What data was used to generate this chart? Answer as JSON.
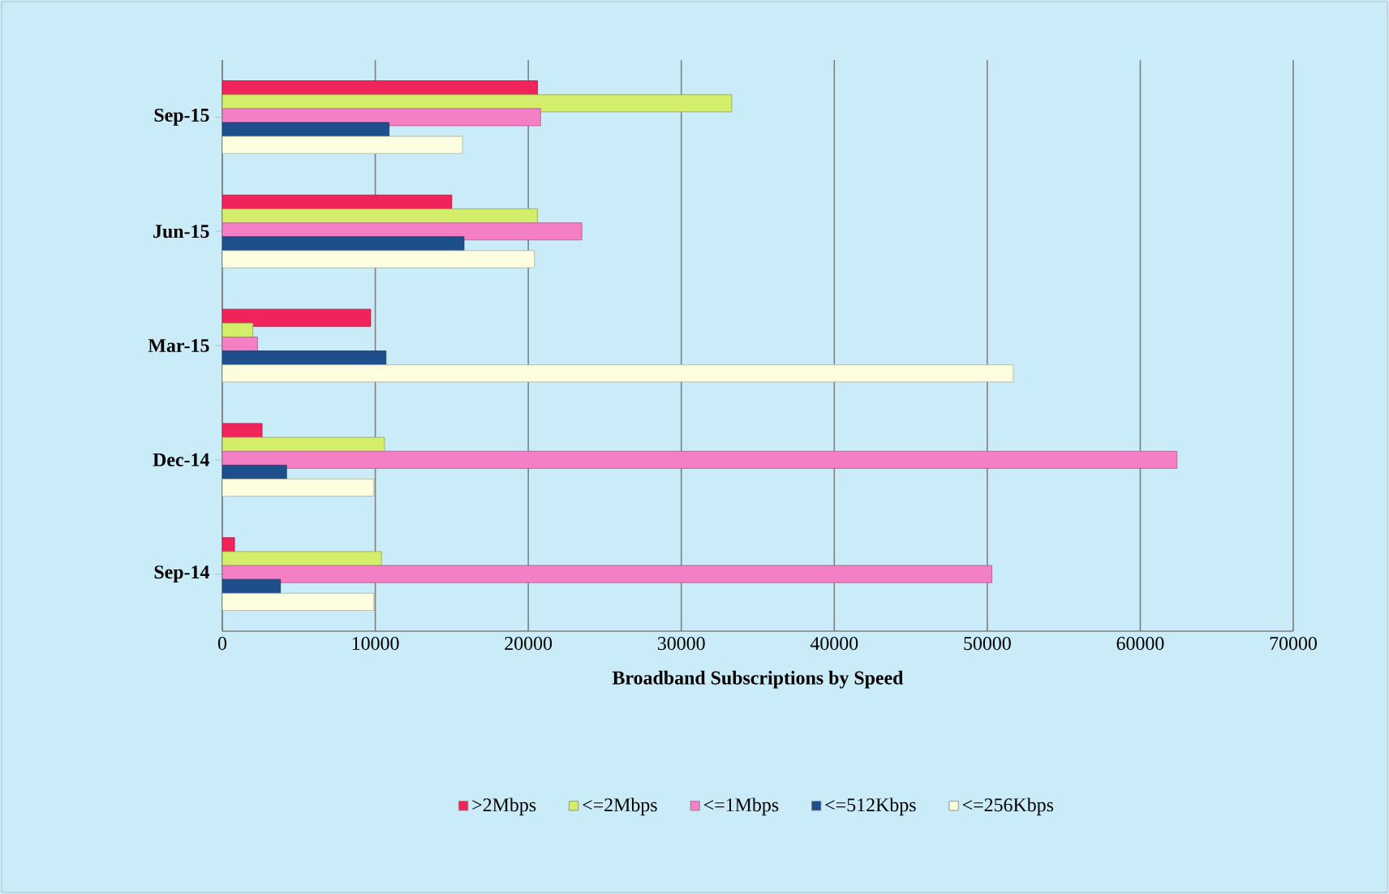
{
  "chart_data": {
    "type": "bar",
    "orientation": "horizontal",
    "xlabel": "Broadband Subscriptions by Speed",
    "categories": [
      "Sep-15",
      "Jun-15",
      "Mar-15",
      "Dec-14",
      "Sep-14"
    ],
    "series": [
      {
        "name": ">2Mbps",
        "color": "#f0245a",
        "values": [
          20600,
          15000,
          9700,
          2600,
          800
        ]
      },
      {
        "name": "<=2Mbps",
        "color": "#d4ed6a",
        "values": [
          33300,
          20600,
          2000,
          10600,
          10400
        ]
      },
      {
        "name": "<=1Mbps",
        "color": "#f47fc4",
        "values": [
          20800,
          23500,
          2300,
          62400,
          50300
        ]
      },
      {
        "name": "<=512Kbps",
        "color": "#1f4e8c",
        "values": [
          10900,
          15800,
          10700,
          4200,
          3800
        ]
      },
      {
        "name": "<=256Kbps",
        "color": "#fdfde0",
        "values": [
          15700,
          20400,
          51700,
          9900,
          9900
        ]
      }
    ],
    "xlim": [
      0,
      70000
    ],
    "xticks": [
      0,
      10000,
      20000,
      30000,
      40000,
      50000,
      60000,
      70000
    ],
    "grid": "x",
    "legend": "bottom"
  }
}
